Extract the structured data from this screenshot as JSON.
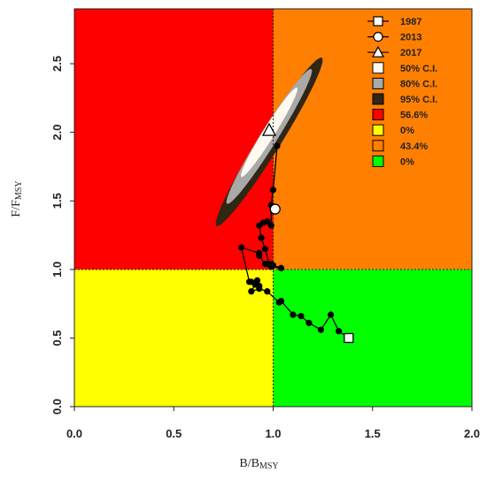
{
  "chart_data": {
    "type": "scatter",
    "subtype": "kobe-phase-plot",
    "xlabel": {
      "main": "B/B",
      "sub": "MSY"
    },
    "ylabel": {
      "main": "F/F",
      "sub": "MSY"
    },
    "xlim": [
      0,
      2
    ],
    "ylim": [
      0,
      2.9
    ],
    "x_ticks": [
      "0.0",
      "0.5",
      "1.0",
      "1.5",
      "2.0"
    ],
    "y_ticks": [
      "0.0",
      "0.5",
      "1.0",
      "1.5",
      "2.0",
      "2.5"
    ],
    "x_tick_values": [
      0,
      0.5,
      1.0,
      1.5,
      2.0
    ],
    "y_tick_values": [
      0,
      0.5,
      1.0,
      1.5,
      2.0,
      2.5
    ],
    "reference_lines": {
      "x": 1.0,
      "y": 1.0,
      "style": "dotted"
    },
    "quadrants": [
      {
        "name": "overfished-and-overfishing",
        "xrange": [
          0,
          1
        ],
        "yrange": [
          1,
          2.9
        ],
        "color": "#ff0000"
      },
      {
        "name": "overfished",
        "xrange": [
          0,
          1
        ],
        "yrange": [
          0,
          1
        ],
        "color": "#ffff00"
      },
      {
        "name": "overfishing",
        "xrange": [
          1,
          2
        ],
        "yrange": [
          1,
          2.9
        ],
        "color": "#ff7f00"
      },
      {
        "name": "healthy",
        "xrange": [
          1,
          2
        ],
        "yrange": [
          0,
          1
        ],
        "color": "#00ff00"
      }
    ],
    "confidence_regions": [
      {
        "label": "95% C.I.",
        "cx": 0.98,
        "cy": 1.93,
        "a": 1.0,
        "b": 0.11,
        "angle_deg": -58,
        "color": "#2f2713"
      },
      {
        "label": "80% C.I.",
        "cx": 0.98,
        "cy": 1.97,
        "a": 0.8,
        "b": 0.085,
        "angle_deg": -58,
        "color": "#a9a9a9"
      },
      {
        "label": "50% C.I.",
        "cx": 0.98,
        "cy": 2.0,
        "a": 0.53,
        "b": 0.058,
        "angle_deg": -58,
        "color": "#fffaf0"
      }
    ],
    "trajectory": {
      "x": [
        1.38,
        1.33,
        1.29,
        1.24,
        1.18,
        1.14,
        1.1,
        1.04,
        1.03,
        0.97,
        0.93,
        0.89,
        0.91,
        0.93,
        0.89,
        0.92,
        0.88,
        0.84,
        0.93,
        0.93,
        0.96,
        0.97,
        0.99,
        0.99,
        1.04,
        1.0,
        0.98,
        0.96,
        0.94,
        0.93,
        0.95,
        0.97,
        0.99,
        0.99,
        1.0,
        1.02
      ],
      "y": [
        0.5,
        0.55,
        0.67,
        0.56,
        0.61,
        0.66,
        0.67,
        0.77,
        0.76,
        0.84,
        0.86,
        0.84,
        0.89,
        0.88,
        0.91,
        0.92,
        0.91,
        1.16,
        1.12,
        1.1,
        1.04,
        1.04,
        1.04,
        1.02,
        1.01,
        1.03,
        1.04,
        1.15,
        1.23,
        1.32,
        1.34,
        1.35,
        1.32,
        1.47,
        1.58,
        1.9
      ]
    },
    "markers": [
      {
        "label": "1987",
        "x": 1.38,
        "y": 0.5,
        "shape": "square"
      },
      {
        "label": "2013",
        "x": 1.01,
        "y": 1.44,
        "shape": "circle"
      },
      {
        "label": "2017",
        "x": 0.98,
        "y": 2.01,
        "shape": "triangle"
      }
    ],
    "legend": {
      "position": "top-right",
      "entries": [
        {
          "label": "1987",
          "kind": "line-square",
          "color": "#ffffff"
        },
        {
          "label": "2013",
          "kind": "line-circle",
          "color": "#ffffff"
        },
        {
          "label": "2017",
          "kind": "line-triangle",
          "color": "#ffffff"
        },
        {
          "label": "50% C.I.",
          "kind": "box",
          "color": "#fffaf0"
        },
        {
          "label": "80% C.I.",
          "kind": "box",
          "color": "#a9a9a9"
        },
        {
          "label": "95% C.I.",
          "kind": "box",
          "color": "#2f2713"
        },
        {
          "label": "56.6%",
          "kind": "box",
          "color": "#ff0000"
        },
        {
          "label": "0%",
          "kind": "box",
          "color": "#ffff00"
        },
        {
          "label": "43.4%",
          "kind": "box",
          "color": "#ff7f00"
        },
        {
          "label": "0%",
          "kind": "box",
          "color": "#00ff00"
        }
      ]
    }
  }
}
